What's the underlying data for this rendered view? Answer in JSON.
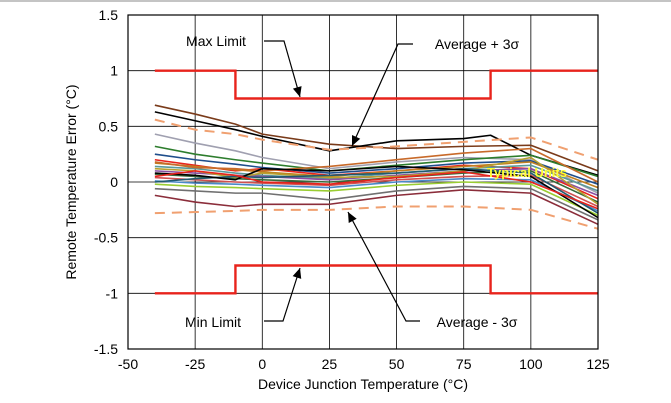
{
  "chart_data": {
    "type": "line",
    "xlabel": "Device Junction Temperature (°C)",
    "ylabel": "Remote Temperature Error (°C)",
    "xlim": [
      -50,
      125
    ],
    "ylim": [
      -1.5,
      1.5
    ],
    "x_ticks": [
      "-50",
      "-25",
      "0",
      "25",
      "50",
      "75",
      "100",
      "125"
    ],
    "y_ticks": [
      "1.5",
      "1",
      "0.5",
      "0",
      "-0.5",
      "-1",
      "-1.5"
    ],
    "grid": true,
    "annotations": {
      "max_limit": "Max Limit",
      "min_limit": "Min Limit",
      "avg_plus": "Average + 3σ",
      "avg_minus": "Average - 3σ",
      "typical": "Typical Units"
    },
    "max_limit_line": {
      "x": [
        -40,
        -10,
        -10,
        85,
        85,
        125
      ],
      "y": [
        1,
        1,
        0.75,
        0.75,
        1,
        1
      ],
      "color": "#e8231c"
    },
    "min_limit_line": {
      "x": [
        -40,
        -10,
        -10,
        85,
        85,
        125
      ],
      "y": [
        -1,
        -1,
        -0.75,
        -0.75,
        -1,
        -1
      ],
      "color": "#e8231c"
    },
    "avg_plus_3sigma": {
      "x": [
        -40,
        -25,
        -10,
        0,
        25,
        50,
        75,
        100,
        125
      ],
      "y": [
        0.56,
        0.47,
        0.43,
        0.38,
        0.29,
        0.32,
        0.36,
        0.4,
        0.2
      ],
      "color": "#f0a070"
    },
    "avg_minus_3sigma": {
      "x": [
        -40,
        -25,
        -10,
        0,
        25,
        50,
        75,
        100,
        125
      ],
      "y": [
        -0.28,
        -0.27,
        -0.26,
        -0.25,
        -0.25,
        -0.22,
        -0.22,
        -0.25,
        -0.42
      ],
      "color": "#f0a070"
    },
    "series": [
      {
        "color": "#7a3b1a",
        "x": [
          -40,
          -25,
          -10,
          0,
          25,
          50,
          75,
          100,
          125
        ],
        "y": [
          0.69,
          0.61,
          0.52,
          0.43,
          0.34,
          0.3,
          0.32,
          0.33,
          0.1
        ]
      },
      {
        "color": "#000000",
        "x": [
          -40,
          -25,
          -10,
          0,
          25,
          50,
          75,
          85,
          100,
          125
        ],
        "y": [
          0.63,
          0.55,
          0.47,
          0.41,
          0.28,
          0.37,
          0.39,
          0.42,
          0.24,
          0.06
        ]
      },
      {
        "color": "#a0a0b0",
        "x": [
          -40,
          -25,
          -10,
          0,
          25,
          50,
          75,
          100,
          125
        ],
        "y": [
          0.43,
          0.35,
          0.28,
          0.22,
          0.12,
          0.18,
          0.22,
          0.2,
          -0.1
        ]
      },
      {
        "color": "#2d7d2d",
        "x": [
          -40,
          -25,
          -10,
          0,
          25,
          50,
          75,
          100,
          125
        ],
        "y": [
          0.32,
          0.25,
          0.2,
          0.17,
          0.1,
          0.15,
          0.2,
          0.24,
          0.05
        ]
      },
      {
        "color": "#1f4e8c",
        "x": [
          -40,
          -25,
          -10,
          0,
          25,
          50,
          75,
          100,
          125
        ],
        "y": [
          0.25,
          0.2,
          0.16,
          0.13,
          0.08,
          0.12,
          0.17,
          0.19,
          -0.02
        ]
      },
      {
        "color": "#e8231c",
        "x": [
          -40,
          -25,
          -10,
          0,
          25,
          50,
          75,
          100,
          125
        ],
        "y": [
          0.2,
          0.15,
          0.1,
          0.12,
          0.06,
          0.1,
          0.15,
          0.12,
          -0.15
        ]
      },
      {
        "color": "#c08020",
        "x": [
          -40,
          -25,
          -10,
          0,
          25,
          50,
          75,
          100,
          125
        ],
        "y": [
          0.17,
          0.14,
          0.11,
          0.09,
          0.05,
          0.1,
          0.14,
          0.18,
          -0.05
        ]
      },
      {
        "color": "#5a9a9a",
        "x": [
          -40,
          -25,
          -10,
          0,
          25,
          50,
          75,
          100,
          125
        ],
        "y": [
          0.14,
          0.12,
          0.08,
          0.06,
          0.03,
          0.08,
          0.12,
          0.15,
          -0.08
        ]
      },
      {
        "color": "#8b4fa0",
        "x": [
          -40,
          -25,
          -10,
          0,
          25,
          50,
          75,
          100,
          125
        ],
        "y": [
          0.1,
          0.08,
          0.06,
          0.05,
          0.02,
          0.06,
          0.1,
          0.12,
          -0.12
        ]
      },
      {
        "color": "#3a6a3a",
        "x": [
          -40,
          -25,
          -10,
          0,
          25,
          50,
          75,
          100,
          125
        ],
        "y": [
          0.07,
          0.05,
          0.03,
          0.02,
          0.0,
          0.04,
          0.08,
          0.1,
          -0.18
        ]
      },
      {
        "color": "#d05050",
        "x": [
          -40,
          -25,
          -10,
          0,
          25,
          50,
          75,
          100,
          125
        ],
        "y": [
          0.04,
          0.02,
          0.0,
          -0.01,
          -0.03,
          0.02,
          0.05,
          0.06,
          -0.22
        ]
      },
      {
        "color": "#4a8ac8",
        "x": [
          -40,
          -25,
          -10,
          0,
          25,
          50,
          75,
          100,
          125
        ],
        "y": [
          0.01,
          -0.01,
          -0.02,
          -0.03,
          -0.05,
          0.0,
          0.03,
          0.02,
          -0.26
        ]
      },
      {
        "color": "#9acd32",
        "x": [
          -40,
          -25,
          -10,
          0,
          25,
          50,
          75,
          100,
          125
        ],
        "y": [
          -0.02,
          -0.04,
          -0.05,
          -0.06,
          -0.08,
          -0.03,
          0.0,
          -0.02,
          -0.3
        ]
      },
      {
        "color": "#707070",
        "x": [
          -40,
          -25,
          -10,
          0,
          25,
          50,
          75,
          100,
          125
        ],
        "y": [
          -0.06,
          -0.08,
          -0.1,
          -0.1,
          -0.16,
          -0.08,
          -0.04,
          -0.06,
          -0.34
        ]
      },
      {
        "color": "#8b2d3a",
        "x": [
          -40,
          -25,
          -10,
          0,
          25,
          50,
          75,
          100,
          125
        ],
        "y": [
          -0.12,
          -0.18,
          -0.22,
          -0.2,
          -0.2,
          -0.12,
          -0.07,
          -0.1,
          -0.38
        ]
      },
      {
        "color": "#b8a030",
        "x": [
          -40,
          -25,
          -10,
          0,
          25,
          50,
          75,
          100,
          125
        ],
        "y": [
          0.12,
          0.1,
          0.04,
          0.08,
          0.04,
          0.05,
          0.1,
          0.22,
          -0.2
        ]
      },
      {
        "color": "#c86a2a",
        "x": [
          -40,
          -25,
          -10,
          0,
          25,
          50,
          75,
          100,
          125
        ],
        "y": [
          0.18,
          0.13,
          0.12,
          0.1,
          0.14,
          0.2,
          0.26,
          0.3,
          0.0
        ]
      },
      {
        "color": "#205a70",
        "x": [
          -40,
          -25,
          -10,
          0,
          25,
          50,
          75,
          100,
          125
        ],
        "y": [
          0.0,
          0.03,
          0.05,
          0.04,
          0.06,
          0.08,
          0.12,
          0.08,
          -0.28
        ]
      },
      {
        "color": "#000000",
        "x": [
          -40,
          -25,
          -10,
          0,
          25,
          50,
          75,
          100,
          125
        ],
        "y": [
          0.08,
          0.06,
          0.02,
          0.12,
          0.1,
          0.14,
          0.11,
          0.05,
          -0.32
        ]
      },
      {
        "color": "#e8231c",
        "x": [
          -40,
          -25,
          -10,
          0,
          25,
          50,
          75,
          100,
          125
        ],
        "y": [
          0.05,
          0.1,
          0.06,
          0.0,
          -0.02,
          0.04,
          0.09,
          0.0,
          -0.24
        ]
      }
    ]
  }
}
